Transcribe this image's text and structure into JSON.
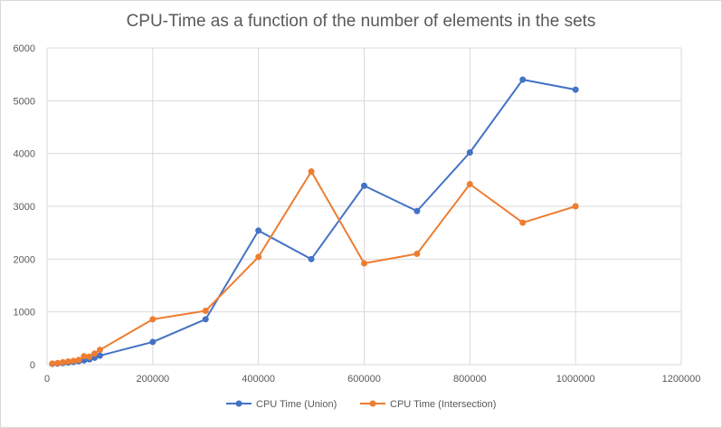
{
  "chart_data": {
    "type": "line",
    "title": "CPU-Time as a function of the number of elements in the sets",
    "xlabel": "",
    "ylabel": "",
    "xlim": [
      0,
      1200000
    ],
    "ylim": [
      0,
      6000
    ],
    "x_ticks": [
      "0",
      "200000",
      "400000",
      "600000",
      "800000",
      "1000000",
      "1200000"
    ],
    "y_ticks": [
      "0",
      "1000",
      "2000",
      "3000",
      "4000",
      "5000",
      "6000"
    ],
    "grid": true,
    "legend_position": "bottom",
    "series": [
      {
        "name": "CPU Time (Union)",
        "color": "#4472c4",
        "points": [
          [
            10000,
            15
          ],
          [
            20000,
            20
          ],
          [
            30000,
            30
          ],
          [
            40000,
            40
          ],
          [
            50000,
            50
          ],
          [
            60000,
            65
          ],
          [
            70000,
            80
          ],
          [
            80000,
            100
          ],
          [
            90000,
            130
          ],
          [
            100000,
            170
          ],
          [
            200000,
            430
          ],
          [
            300000,
            860
          ],
          [
            400000,
            2540
          ],
          [
            500000,
            2000
          ],
          [
            600000,
            3390
          ],
          [
            700000,
            2910
          ],
          [
            800000,
            4020
          ],
          [
            900000,
            5400
          ],
          [
            1000000,
            5210
          ]
        ]
      },
      {
        "name": "CPU Time (Intersection)",
        "color": "#ed7d31",
        "points": [
          [
            10000,
            20
          ],
          [
            20000,
            30
          ],
          [
            30000,
            45
          ],
          [
            40000,
            60
          ],
          [
            50000,
            70
          ],
          [
            60000,
            90
          ],
          [
            70000,
            160
          ],
          [
            80000,
            150
          ],
          [
            90000,
            210
          ],
          [
            100000,
            280
          ],
          [
            200000,
            860
          ],
          [
            300000,
            1020
          ],
          [
            400000,
            2040
          ],
          [
            500000,
            3660
          ],
          [
            600000,
            1920
          ],
          [
            700000,
            2100
          ],
          [
            800000,
            3420
          ],
          [
            900000,
            2690
          ],
          [
            1000000,
            3000
          ]
        ]
      }
    ]
  }
}
